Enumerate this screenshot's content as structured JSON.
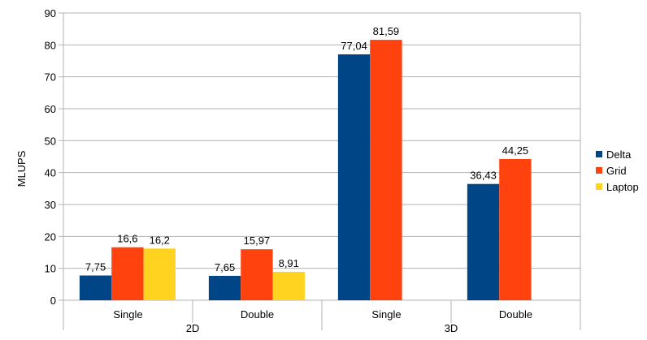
{
  "chart_data": {
    "type": "bar",
    "ylabel": "MLUPS",
    "ylim": [
      0,
      90
    ],
    "yticks": [
      0,
      10,
      20,
      30,
      40,
      50,
      60,
      70,
      80,
      90
    ],
    "grid": true,
    "legend_position": "right",
    "groups": [
      {
        "label": "2D",
        "categories": [
          "Single",
          "Double"
        ]
      },
      {
        "label": "3D",
        "categories": [
          "Single",
          "Double"
        ]
      }
    ],
    "series": [
      {
        "name": "Delta",
        "color": "#004586",
        "values": [
          7.75,
          7.65,
          77.04,
          36.43
        ],
        "labels": [
          "7,75",
          "7,65",
          "77,04",
          "36,43"
        ]
      },
      {
        "name": "Grid",
        "color": "#ff420e",
        "values": [
          16.6,
          15.97,
          81.59,
          44.25
        ],
        "labels": [
          "16,6",
          "15,97",
          "81,59",
          "44,25"
        ]
      },
      {
        "name": "Laptop",
        "color": "#ffd320",
        "values": [
          16.2,
          8.91,
          null,
          null
        ],
        "labels": [
          "16,2",
          "8,91",
          null,
          null
        ]
      }
    ]
  }
}
